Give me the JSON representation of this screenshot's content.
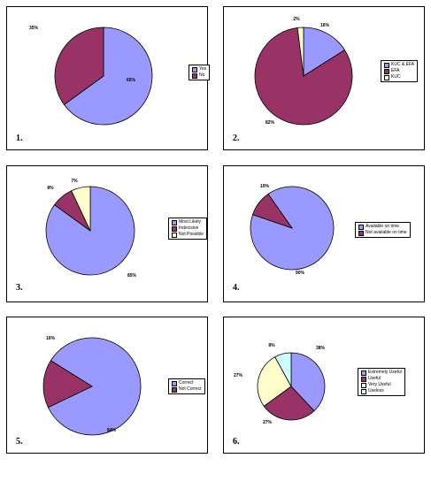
{
  "chart_data": [
    {
      "type": "pie",
      "panel_number": "1.",
      "categories": [
        "Yes",
        "No"
      ],
      "values": [
        65,
        35
      ],
      "value_labels": [
        "65%",
        "35%"
      ],
      "colors": [
        "#9999ff",
        "#993366"
      ],
      "legend_position": "right"
    },
    {
      "type": "pie",
      "panel_number": "2.",
      "categories": [
        "KUC & EFA",
        "EFA",
        "KUC"
      ],
      "values": [
        16,
        82,
        2
      ],
      "value_labels": [
        "16%",
        "82%",
        "2%"
      ],
      "colors": [
        "#9999ff",
        "#993366",
        "#ffffcc"
      ],
      "legend_position": "right"
    },
    {
      "type": "pie",
      "panel_number": "3.",
      "categories": [
        "Most Likely",
        "Indecisive",
        "Not Possible"
      ],
      "values": [
        85,
        8,
        7
      ],
      "value_labels": [
        "85%",
        "8%",
        "7%"
      ],
      "colors": [
        "#9999ff",
        "#993366",
        "#ffffcc"
      ],
      "legend_position": "right"
    },
    {
      "type": "pie",
      "panel_number": "4.",
      "categories": [
        "Available on time",
        "Not available on time"
      ],
      "values": [
        90,
        10
      ],
      "value_labels": [
        "90%",
        "10%"
      ],
      "colors": [
        "#9999ff",
        "#993366"
      ],
      "legend_position": "right"
    },
    {
      "type": "pie",
      "panel_number": "5.",
      "categories": [
        "Correct",
        "Not Correct"
      ],
      "values": [
        84,
        16
      ],
      "value_labels": [
        "84%",
        "16%"
      ],
      "colors": [
        "#9999ff",
        "#993366"
      ],
      "legend_position": "right"
    },
    {
      "type": "pie",
      "panel_number": "6.",
      "categories": [
        "Extremely Useful",
        "Useful",
        "Very Useful",
        "Useless"
      ],
      "values": [
        38,
        27,
        27,
        8
      ],
      "value_labels": [
        "38%",
        "27%",
        "27%",
        "8%"
      ],
      "colors": [
        "#9999ff",
        "#993366",
        "#ffffcc",
        "#ccffff"
      ],
      "legend_position": "right"
    }
  ]
}
